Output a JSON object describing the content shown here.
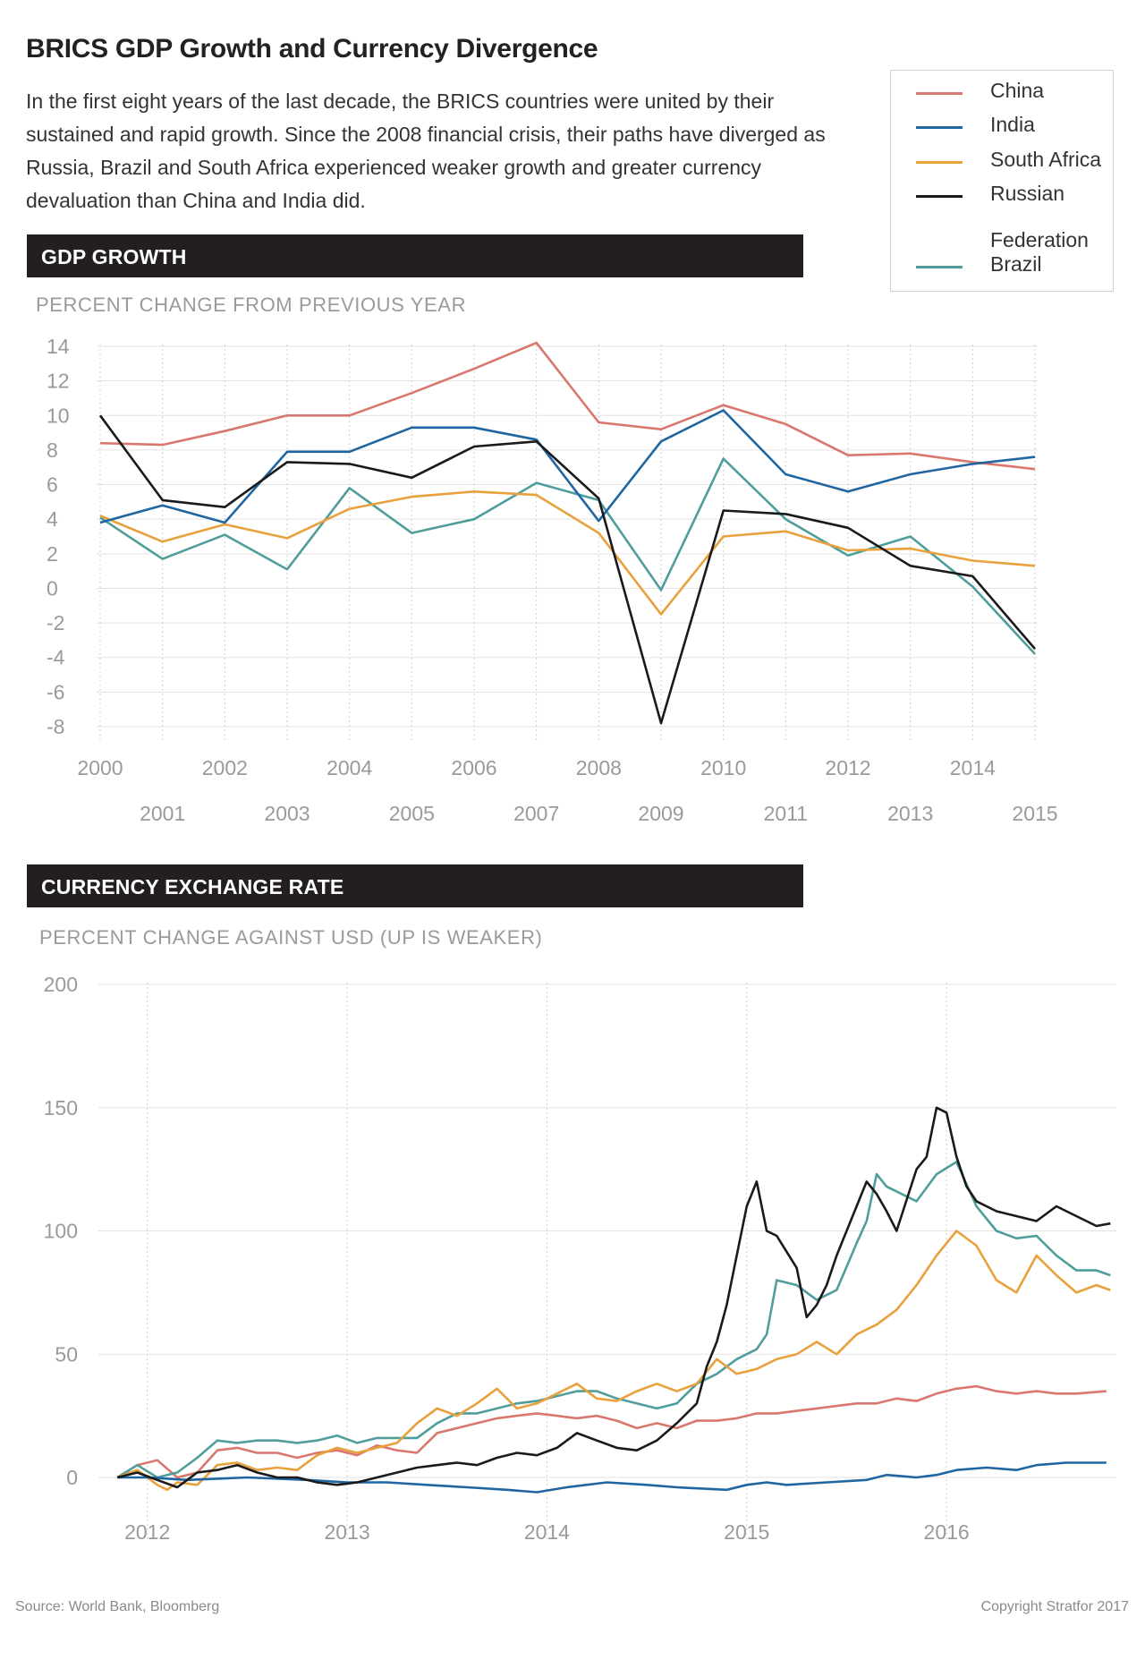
{
  "title": "BRICS GDP Growth and Currency Divergence",
  "intro": "In the first eight years of the last decade, the BRICS countries were united by their sustained and rapid growth. Since the 2008 financial crisis, their paths have diverged as Russia, Brazil and South Africa experienced weaker growth and greater currency devaluation than China and India did.",
  "legend": [
    {
      "label": "China",
      "color": "#d9776e"
    },
    {
      "label": "India",
      "color": "#1f66a1"
    },
    {
      "label": "South Africa",
      "color": "#e8a13c"
    },
    {
      "label": "Russian",
      "color": "#1a1a1a"
    },
    {
      "label": "Federation",
      "color": ""
    },
    {
      "label": "Brazil",
      "color": "#4f9e9b"
    }
  ],
  "colors": {
    "China": "#d9776e",
    "India": "#1f66a1",
    "South Africa": "#e8a13c",
    "Russia": "#1a1a1a",
    "Brazil": "#4f9e9b"
  },
  "gdp_section": {
    "band": "GDP GROWTH",
    "subtitle": "PERCENT CHANGE FROM PREVIOUS YEAR"
  },
  "fx_section": {
    "band": "CURRENCY EXCHANGE RATE",
    "subtitle": "PERCENT CHANGE AGAINST USD (UP IS WEAKER)"
  },
  "footer": {
    "source": "Source: World Bank, Bloomberg",
    "copyright": "Copyright Stratfor 2017"
  },
  "chart_data": [
    {
      "type": "line",
      "title": "GDP GROWTH",
      "ylabel": "PERCENT CHANGE FROM PREVIOUS YEAR",
      "x": [
        2000,
        2001,
        2002,
        2003,
        2004,
        2005,
        2006,
        2007,
        2008,
        2009,
        2010,
        2011,
        2012,
        2013,
        2014,
        2015
      ],
      "ylim": [
        -8,
        14
      ],
      "yticks": [
        -8,
        -6,
        -4,
        -2,
        0,
        2,
        4,
        6,
        8,
        10,
        12,
        14
      ],
      "xticks_top": [
        "2000",
        "2002",
        "2004",
        "2006",
        "2008",
        "2010",
        "2012",
        "2014"
      ],
      "xticks_bottom": [
        "2001",
        "2003",
        "2005",
        "2007",
        "2009",
        "2011",
        "2013",
        "2015"
      ],
      "grid": true,
      "series": [
        {
          "name": "China",
          "values": [
            8.4,
            8.3,
            9.1,
            10.0,
            10.0,
            11.3,
            12.7,
            14.2,
            9.6,
            9.2,
            10.6,
            9.5,
            7.7,
            7.8,
            7.3,
            6.9
          ]
        },
        {
          "name": "India",
          "values": [
            3.8,
            4.8,
            3.8,
            7.9,
            7.9,
            9.3,
            9.3,
            8.6,
            3.9,
            8.5,
            10.3,
            6.6,
            5.6,
            6.6,
            7.2,
            7.6
          ]
        },
        {
          "name": "South Africa",
          "values": [
            4.2,
            2.7,
            3.7,
            2.9,
            4.6,
            5.3,
            5.6,
            5.4,
            3.2,
            -1.5,
            3.0,
            3.3,
            2.2,
            2.3,
            1.6,
            1.3
          ]
        },
        {
          "name": "Russian Federation",
          "values": [
            10.0,
            5.1,
            4.7,
            7.3,
            7.2,
            6.4,
            8.2,
            8.5,
            5.2,
            -7.8,
            4.5,
            4.3,
            3.5,
            1.3,
            0.7,
            -3.5
          ]
        },
        {
          "name": "Brazil",
          "values": [
            4.1,
            1.7,
            3.1,
            1.1,
            5.8,
            3.2,
            4.0,
            6.1,
            5.1,
            -0.1,
            7.5,
            4.0,
            1.9,
            3.0,
            0.1,
            -3.8
          ]
        }
      ]
    },
    {
      "type": "line",
      "title": "CURRENCY EXCHANGE RATE",
      "ylabel": "PERCENT CHANGE AGAINST USD (UP IS WEAKER)",
      "xlim": [
        2011.8,
        2016.85
      ],
      "ylim": [
        -20,
        200
      ],
      "yticks": [
        0,
        50,
        100,
        150,
        200
      ],
      "xticks": [
        "2012",
        "2013",
        "2014",
        "2015",
        "2016"
      ],
      "grid": true,
      "series": [
        {
          "name": "China",
          "x": [
            2011.85,
            2011.95,
            2012.05,
            2012.15,
            2012.25,
            2012.35,
            2012.45,
            2012.55,
            2012.65,
            2012.75,
            2012.85,
            2012.95,
            2013.05,
            2013.15,
            2013.25,
            2013.35,
            2013.45,
            2013.55,
            2013.65,
            2013.75,
            2013.85,
            2013.95,
            2014.05,
            2014.15,
            2014.25,
            2014.35,
            2014.45,
            2014.55,
            2014.65,
            2014.75,
            2014.85,
            2014.95,
            2015.05,
            2015.15,
            2015.25,
            2015.35,
            2015.45,
            2015.55,
            2015.65,
            2015.75,
            2015.85,
            2015.95,
            2016.05,
            2016.15,
            2016.25,
            2016.35,
            2016.45,
            2016.55,
            2016.65,
            2016.8
          ],
          "values": [
            0,
            5,
            7,
            0,
            2,
            11,
            12,
            10,
            10,
            8,
            10,
            11,
            9,
            13,
            11,
            10,
            18,
            20,
            22,
            24,
            25,
            26,
            25,
            24,
            25,
            23,
            20,
            22,
            20,
            23,
            23,
            24,
            26,
            26,
            27,
            28,
            29,
            30,
            30,
            32,
            31,
            34,
            36,
            37,
            35,
            34,
            35,
            34,
            34,
            35
          ]
        },
        {
          "name": "India",
          "x": [
            2011.85,
            2012.0,
            2012.2,
            2012.5,
            2012.8,
            2013.0,
            2013.2,
            2013.4,
            2013.6,
            2013.8,
            2013.95,
            2014.1,
            2014.3,
            2014.5,
            2014.65,
            2014.9,
            2015.0,
            2015.1,
            2015.2,
            2015.4,
            2015.6,
            2015.7,
            2015.85,
            2015.95,
            2016.05,
            2016.2,
            2016.35,
            2016.45,
            2016.6,
            2016.8
          ],
          "values": [
            0,
            0,
            -1,
            0,
            -1,
            -2,
            -2,
            -3,
            -4,
            -5,
            -6,
            -4,
            -2,
            -3,
            -4,
            -5,
            -3,
            -2,
            -3,
            -2,
            -1,
            1,
            0,
            1,
            3,
            4,
            3,
            5,
            6,
            6
          ]
        },
        {
          "name": "South Africa",
          "x": [
            2011.85,
            2011.95,
            2012.05,
            2012.1,
            2012.15,
            2012.25,
            2012.35,
            2012.45,
            2012.55,
            2012.65,
            2012.75,
            2012.85,
            2012.95,
            2013.05,
            2013.15,
            2013.25,
            2013.35,
            2013.45,
            2013.55,
            2013.65,
            2013.75,
            2013.85,
            2013.95,
            2014.05,
            2014.15,
            2014.25,
            2014.35,
            2014.45,
            2014.55,
            2014.65,
            2014.75,
            2014.85,
            2014.95,
            2015.05,
            2015.15,
            2015.25,
            2015.35,
            2015.45,
            2015.55,
            2015.65,
            2015.75,
            2015.85,
            2015.95,
            2016.05,
            2016.15,
            2016.25,
            2016.35,
            2016.45,
            2016.55,
            2016.65,
            2016.75,
            2016.82
          ],
          "values": [
            0,
            3,
            -3,
            -5,
            -2,
            -3,
            5,
            6,
            3,
            4,
            3,
            9,
            12,
            10,
            12,
            14,
            22,
            28,
            25,
            30,
            36,
            28,
            30,
            34,
            38,
            32,
            31,
            35,
            38,
            35,
            38,
            48,
            42,
            44,
            48,
            50,
            55,
            50,
            58,
            62,
            68,
            78,
            90,
            100,
            94,
            80,
            75,
            90,
            82,
            75,
            78,
            76
          ]
        },
        {
          "name": "Russian Federation",
          "x": [
            2011.85,
            2011.95,
            2012.05,
            2012.15,
            2012.25,
            2012.35,
            2012.45,
            2012.55,
            2012.65,
            2012.75,
            2012.85,
            2012.95,
            2013.05,
            2013.15,
            2013.25,
            2013.35,
            2013.45,
            2013.55,
            2013.65,
            2013.75,
            2013.85,
            2013.95,
            2014.05,
            2014.15,
            2014.25,
            2014.35,
            2014.45,
            2014.55,
            2014.65,
            2014.75,
            2014.8,
            2014.85,
            2014.9,
            2014.95,
            2015.0,
            2015.05,
            2015.1,
            2015.15,
            2015.25,
            2015.3,
            2015.35,
            2015.4,
            2015.45,
            2015.55,
            2015.6,
            2015.65,
            2015.7,
            2015.75,
            2015.85,
            2015.9,
            2015.95,
            2016.0,
            2016.05,
            2016.1,
            2016.15,
            2016.25,
            2016.35,
            2016.45,
            2016.55,
            2016.65,
            2016.75,
            2016.82
          ],
          "values": [
            0,
            2,
            -1,
            -4,
            2,
            3,
            5,
            2,
            0,
            0,
            -2,
            -3,
            -2,
            0,
            2,
            4,
            5,
            6,
            5,
            8,
            10,
            9,
            12,
            18,
            15,
            12,
            11,
            15,
            22,
            30,
            45,
            55,
            70,
            90,
            110,
            120,
            100,
            98,
            85,
            65,
            70,
            78,
            90,
            110,
            120,
            115,
            108,
            100,
            125,
            130,
            150,
            148,
            130,
            118,
            112,
            108,
            106,
            104,
            110,
            106,
            102,
            103
          ]
        },
        {
          "name": "Brazil",
          "x": [
            2011.85,
            2011.95,
            2012.05,
            2012.15,
            2012.25,
            2012.35,
            2012.45,
            2012.55,
            2012.65,
            2012.75,
            2012.85,
            2012.95,
            2013.05,
            2013.15,
            2013.25,
            2013.35,
            2013.45,
            2013.55,
            2013.65,
            2013.75,
            2013.85,
            2013.95,
            2014.05,
            2014.15,
            2014.25,
            2014.35,
            2014.45,
            2014.55,
            2014.65,
            2014.75,
            2014.85,
            2014.95,
            2015.05,
            2015.1,
            2015.15,
            2015.25,
            2015.35,
            2015.45,
            2015.55,
            2015.6,
            2015.65,
            2015.7,
            2015.75,
            2015.85,
            2015.95,
            2016.05,
            2016.15,
            2016.25,
            2016.35,
            2016.45,
            2016.55,
            2016.65,
            2016.75,
            2016.82
          ],
          "values": [
            0,
            5,
            0,
            2,
            8,
            15,
            14,
            15,
            15,
            14,
            15,
            17,
            14,
            16,
            16,
            16,
            22,
            26,
            26,
            28,
            30,
            31,
            33,
            35,
            35,
            32,
            30,
            28,
            30,
            38,
            42,
            48,
            52,
            58,
            80,
            78,
            72,
            76,
            95,
            104,
            123,
            118,
            116,
            112,
            123,
            128,
            110,
            100,
            97,
            98,
            90,
            84,
            84,
            82
          ]
        }
      ]
    }
  ]
}
